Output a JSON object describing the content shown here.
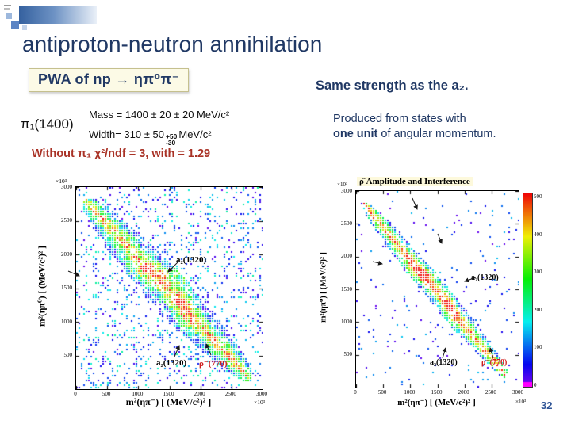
{
  "slide": {
    "title": "antiproton-neutron annihilation",
    "page_number": "32"
  },
  "pwa_box": {
    "prefix": "PWA of ",
    "nbar": "n",
    "rest": "p → ηπ⁰π⁻"
  },
  "claims": {
    "same_strength": "Same strength as the a₂.",
    "produced_line1": "Produced from states with",
    "produced_emph": "one unit",
    "produced_rest": " of angular momentum."
  },
  "pi1": {
    "label": "π₁(1400)",
    "mass_line": "Mass = 1400 ± 20 ± 20 MeV/c²",
    "width_pre": "Width=  310 ± 50",
    "width_sup": "+50",
    "width_sub": "-30",
    "width_post": "MeV/c²"
  },
  "fit": {
    "chi2_line": "Without π₁ χ²/ndf = 3, with = 1.29"
  },
  "chart_data": [
    {
      "type": "heatmap",
      "name": "dalitz-plot-data",
      "title": "",
      "xlabel": "m²(ηπ⁻) [ (MeV/c²)² ]",
      "ylabel": "m²(ηπ⁰)  [ (MeV/c²)² ]",
      "axis_multiplier": "×10³",
      "xlim": [
        0,
        3000
      ],
      "ylim": [
        0,
        3000
      ],
      "x_ticks": [
        0,
        500,
        1000,
        1500,
        2000,
        2500,
        3000
      ],
      "y_ticks": [
        500,
        1000,
        1500,
        2000,
        2500,
        3000
      ],
      "annotations": [
        {
          "text": "a₂(1320)",
          "color": "#000000",
          "target": "vertical a₂ band at m²(ηπ⁻) ≈ 1742×10³"
        },
        {
          "text": "a₂(1320)",
          "color": "#000000",
          "target": "horizontal a₂ band at m²(ηπ⁰) ≈ 1742×10³"
        },
        {
          "text": "ρ⁻(770)",
          "color": "#cf1f1f",
          "target": "anti-diagonal ρ⁻ band, m²(π⁰π⁻) ≈ 593×10³"
        }
      ],
      "structure": {
        "comment": "broad kinematic band from (≈150,2800) to (≈2800,150); ρ⁻(770) ridge along anti-diagonal; a₂(1320) enhancements on both axes; red core where bands cross",
        "s0": 2950,
        "diagHalf": 1330,
        "bandHalf": 410,
        "bandMin": 35,
        "base": 0.5,
        "ridge": 0.34,
        "ridgeW": 230,
        "res_mass2": 1742,
        "resBoost": 0.26,
        "resW": 160,
        "noise": 0.45,
        "scatter": 0.2,
        "scatterMax": 0.42,
        "holes": 0.12,
        "seed": 29,
        "cell": 3
      }
    },
    {
      "type": "heatmap",
      "name": "rho-amplitude-interference",
      "title": "ρ̂ Amplitude and Interference",
      "xlabel": "m²(ηπ⁻)  [ (MeV/c²)² ]",
      "ylabel": "m²(ηπ⁰)  [ (MeV/c²)² ]",
      "axis_multiplier": "×10³",
      "xlim": [
        0,
        3000
      ],
      "ylim": [
        0,
        3000
      ],
      "x_ticks": [
        0,
        500,
        1000,
        1500,
        2000,
        2500,
        3000
      ],
      "y_ticks": [
        500,
        1000,
        1500,
        2000,
        2500,
        3000
      ],
      "colorbar_ticks": [
        "500",
        "400",
        "300",
        "200",
        "100",
        "0"
      ],
      "annotations": [
        {
          "text": "a₂(1320)",
          "color": "#000000"
        },
        {
          "text": "a₂(1320)",
          "color": "#000000"
        },
        {
          "text": "ρ⁻(770)",
          "color": "#cf1f1f"
        }
      ],
      "structure": {
        "comment": "narrower ρ̂ amplitude band along the anti-diagonal with red core near the a₂ crossings",
        "s0": 2950,
        "diagHalf": 1330,
        "bandHalf": 250,
        "bandMin": 25,
        "base": 0.55,
        "ridge": 0.42,
        "ridgeW": 150,
        "res_mass2": 1742,
        "resBoost": 0.3,
        "resW": 150,
        "noise": 0.35,
        "scatter": 0.05,
        "scatterMax": 0.3,
        "holes": 0.2,
        "seed": 101,
        "cell": 3
      }
    }
  ]
}
